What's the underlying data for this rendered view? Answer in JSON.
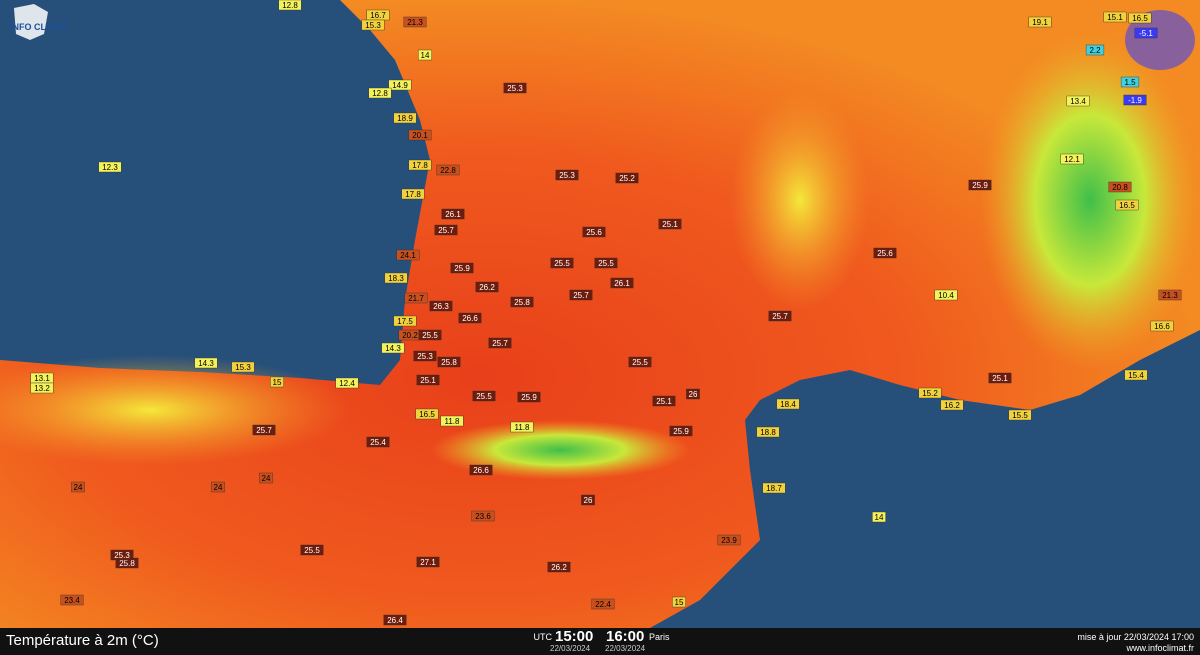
{
  "header": {
    "logo": "INFO CLIMAT"
  },
  "legend": {
    "title": "Température à 2m (°C)",
    "utc_label": "UTC",
    "utc_time": "15:00",
    "utc_date": "22/03/2024",
    "local_time": "16:00",
    "local_label": "Paris",
    "local_date": "22/03/2024",
    "update": "mise à jour 22/03/2024 17:00",
    "site": "www.infoclimat.fr"
  },
  "stations": [
    12.8,
    16.7,
    21.3,
    15.3,
    14,
    14.9,
    12.8,
    18.9,
    20.1,
    12.3,
    17.8,
    22.8,
    17.8,
    26.1,
    25.7,
    24.1,
    25.9,
    18.3,
    26.2,
    21.7,
    26.3,
    26.6,
    17.5,
    20.2,
    25.5,
    14.3,
    25.3,
    25.8,
    14.3,
    15.3,
    13.1,
    13.2,
    15,
    12.4,
    25.1,
    25.5,
    25.9,
    16.5,
    11.8,
    11.8,
    25.7,
    25.4,
    26.6,
    24,
    24,
    24,
    26,
    23.6,
    25.5,
    25.8,
    25.3,
    27.1,
    26.2,
    23.4,
    26.4,
    22.4,
    15,
    23.9,
    18.7,
    18.8,
    18.4,
    14,
    15.4,
    15.5,
    16.2,
    15.2,
    25.1,
    25.6,
    25.9,
    -5.1,
    -1.9,
    2.2,
    1.5,
    16.5,
    15.1,
    19.1,
    25.3,
    25.3,
    25.2,
    25.6,
    25.5,
    25.5,
    25.7,
    26.1,
    25.8,
    25.7,
    25.5,
    25.1,
    26,
    25.9,
    25.7,
    25.1,
    20.8,
    16.5,
    21.3,
    16.6,
    10.4,
    12.1,
    13.4
  ]
}
